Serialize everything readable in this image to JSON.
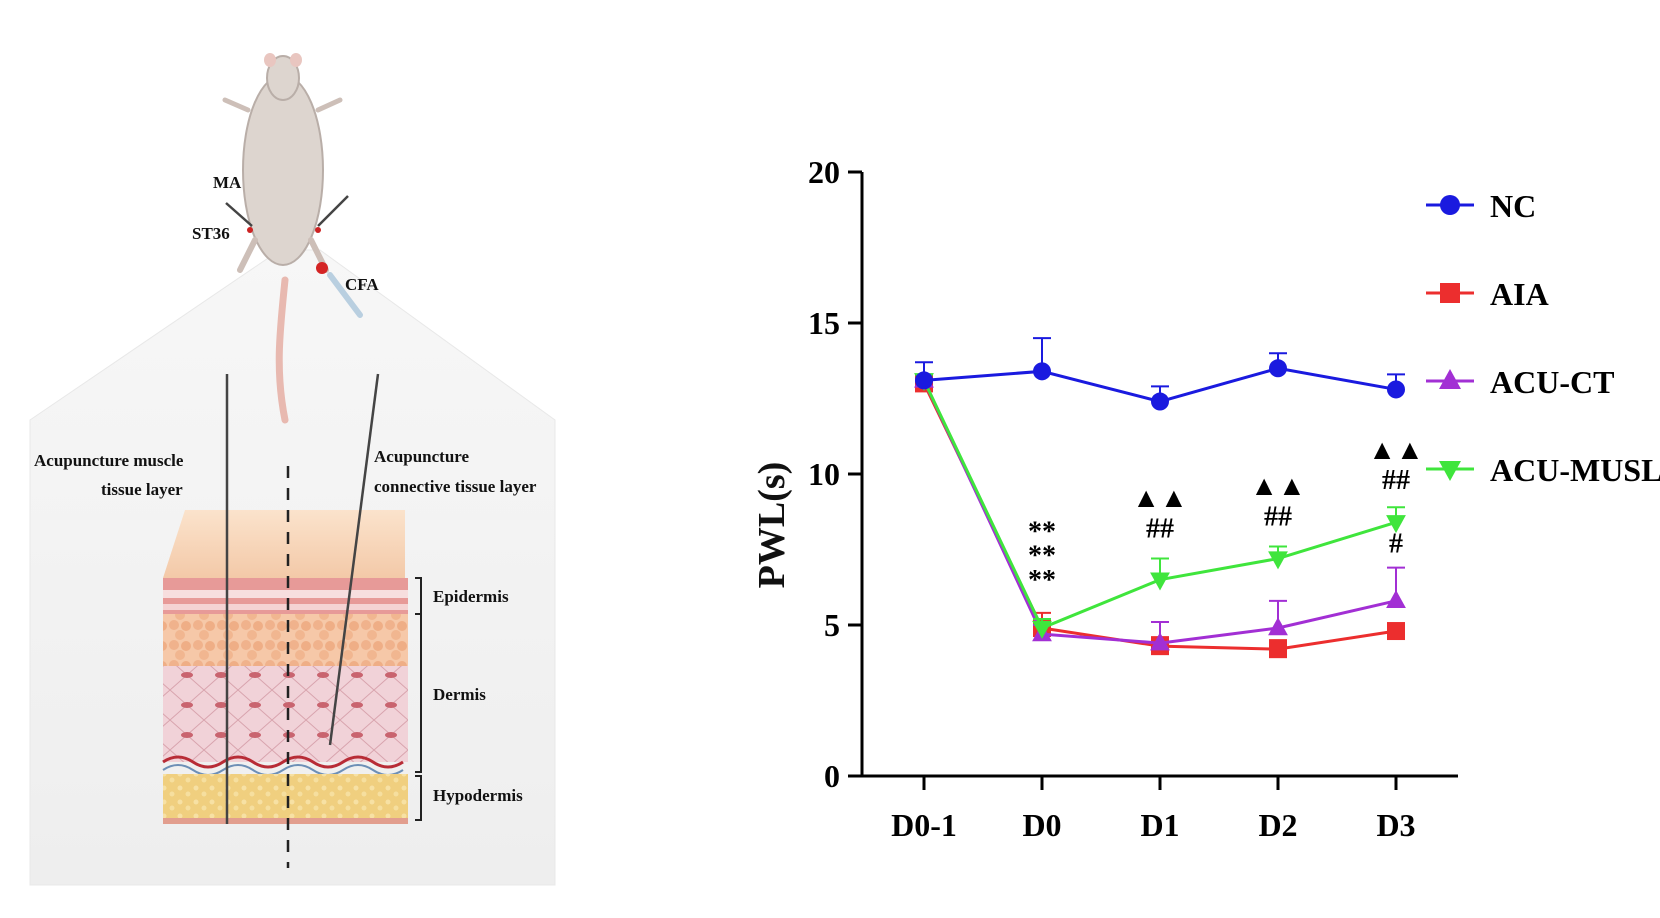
{
  "illustration": {
    "labels": {
      "ma": "MA",
      "st36": "ST36",
      "cfa": "CFA",
      "muscle_layer": [
        "Acupuncture muscle",
        "tissue layer"
      ],
      "connective_layer": [
        "Acupuncture",
        "connective tissue layer"
      ],
      "epidermis": "Epidermis",
      "dermis": "Dermis",
      "hypodermis": "Hypodermis"
    }
  },
  "chart_data": {
    "type": "line",
    "title": "",
    "xlabel": "",
    "ylabel": "PWL(s)",
    "categories": [
      "D0-1",
      "D0",
      "D1",
      "D2",
      "D3"
    ],
    "ylim": [
      0,
      20
    ],
    "yticks": [
      0,
      5,
      10,
      15,
      20
    ],
    "grid": false,
    "legend_position": "top-right",
    "series": [
      {
        "name": "NC",
        "marker": "circle",
        "color": "#1a1adf",
        "values": [
          13.1,
          13.4,
          12.4,
          13.5,
          12.8
        ],
        "errors": [
          0.6,
          1.1,
          0.5,
          0.5,
          0.5
        ]
      },
      {
        "name": "AIA",
        "marker": "square",
        "color": "#ec2e2e",
        "values": [
          13.0,
          4.9,
          4.3,
          4.2,
          4.8
        ],
        "errors": [
          0.0,
          0.5,
          0.3,
          0.3,
          0.2
        ]
      },
      {
        "name": "ACU-CT",
        "marker": "triangle-up",
        "color": "#a22fd4",
        "values": [
          13.1,
          4.7,
          4.4,
          4.9,
          5.8
        ],
        "errors": [
          0.0,
          0.3,
          0.7,
          0.9,
          1.1
        ]
      },
      {
        "name": "ACU-MUSL",
        "marker": "triangle-down",
        "color": "#3fe53c",
        "values": [
          13.1,
          4.9,
          6.5,
          7.2,
          8.4
        ],
        "errors": [
          0.0,
          0.3,
          0.7,
          0.4,
          0.5
        ]
      }
    ],
    "annotations": [
      {
        "category": "D0",
        "y": 7.8,
        "text": "**"
      },
      {
        "category": "D0",
        "y": 7.0,
        "text": "**"
      },
      {
        "category": "D0",
        "y": 6.2,
        "text": "**"
      },
      {
        "category": "D1",
        "y": 8.9,
        "text": "▲▲"
      },
      {
        "category": "D1",
        "y": 7.9,
        "text": "##"
      },
      {
        "category": "D2",
        "y": 9.3,
        "text": "▲▲"
      },
      {
        "category": "D2",
        "y": 8.3,
        "text": "##"
      },
      {
        "category": "D3",
        "y": 10.5,
        "text": "▲▲"
      },
      {
        "category": "D3",
        "y": 9.5,
        "text": "##"
      },
      {
        "category": "D3",
        "y": 7.4,
        "text": "#"
      }
    ]
  }
}
